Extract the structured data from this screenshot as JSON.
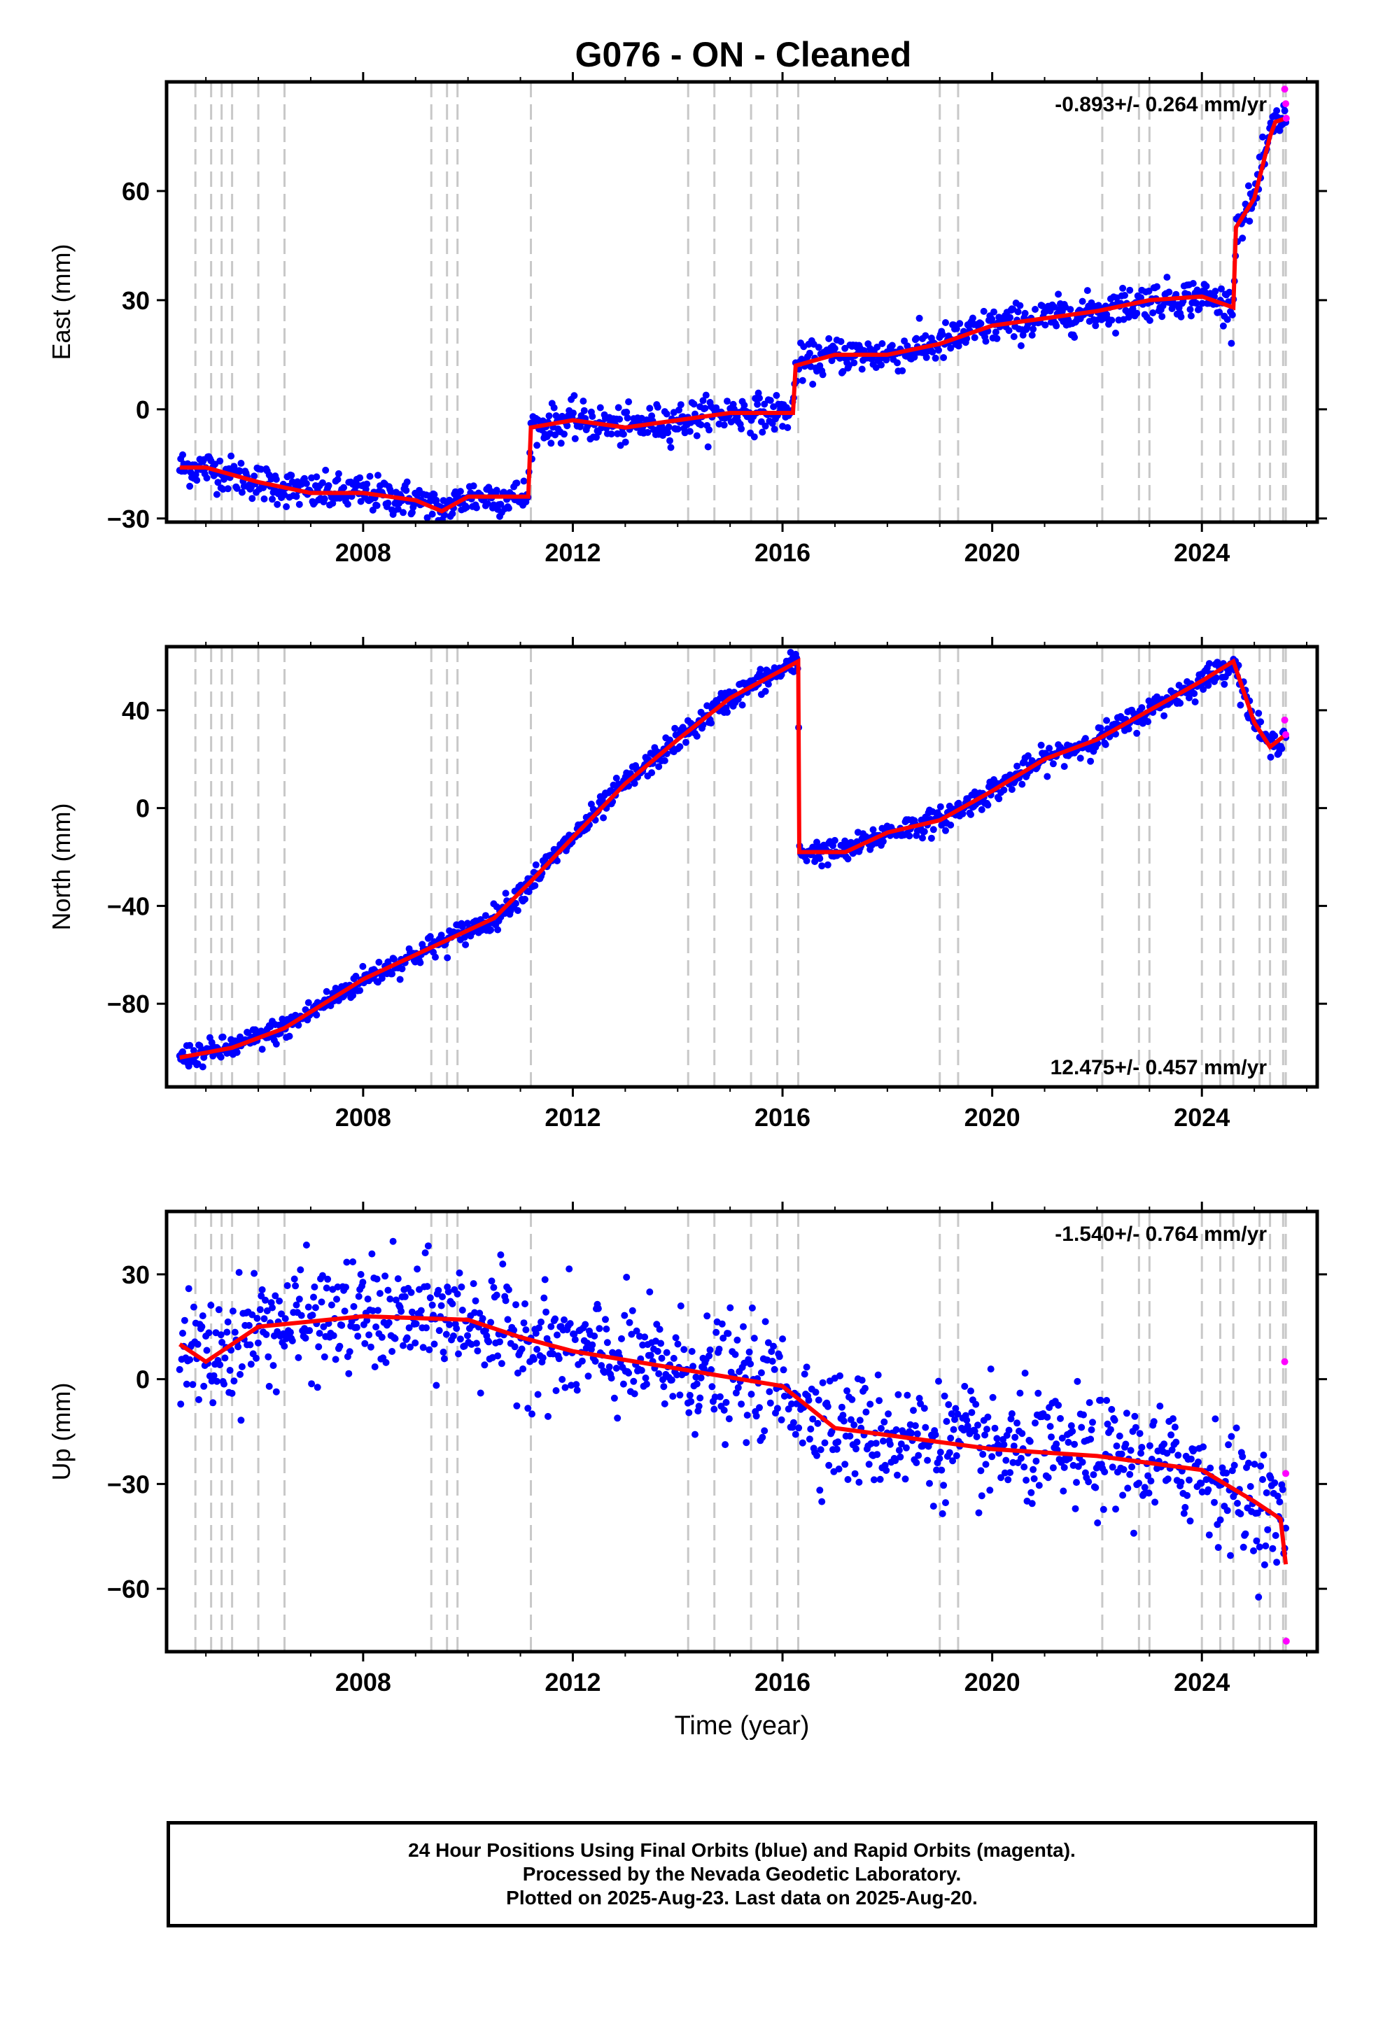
{
  "title": "G076  - ON - Cleaned",
  "colors": {
    "final_orbits": "#0000ff",
    "rapid_orbits": "#ff00ff",
    "model": "#ff0000",
    "event_lines": "#c8c8c8"
  },
  "event_years": [
    2004.8,
    2005.1,
    2005.3,
    2005.5,
    2006.0,
    2006.5,
    2009.3,
    2009.6,
    2009.8,
    2011.2,
    2014.2,
    2014.7,
    2015.4,
    2015.9,
    2016.3,
    2019.0,
    2019.35,
    2022.1,
    2022.8,
    2023.0,
    2024.0,
    2024.35,
    2024.6,
    2025.1,
    2025.3,
    2025.55,
    2025.6
  ],
  "chart_data": [
    {
      "type": "scatter",
      "id": "east",
      "ylabel": "East (mm)",
      "xlabel": "",
      "xlim": [
        2004.25,
        2026.2
      ],
      "ylim": [
        -31,
        90
      ],
      "xticks": [
        2008,
        2012,
        2016,
        2020,
        2024
      ],
      "xtick_labels": [
        "2008",
        "2012",
        "2016",
        "2020",
        "2024"
      ],
      "yticks": [
        -30,
        0,
        30,
        60
      ],
      "ytick_labels": [
        "−30",
        "0",
        "30",
        "60"
      ],
      "annotation": "-0.893+/- 0.264 mm/yr",
      "annotation_position": "top-right",
      "model_series": {
        "name": "",
        "x": [
          2004.5,
          2005.0,
          2006.0,
          2007.0,
          2008.0,
          2009.0,
          2009.5,
          2010.0,
          2011.15,
          2011.2,
          2012.0,
          2013.0,
          2014.0,
          2015.0,
          2016.2,
          2016.25,
          2017.0,
          2018.0,
          2019.0,
          2020.0,
          2021.0,
          2022.0,
          2023.0,
          2024.0,
          2024.6,
          2024.65,
          2025.0,
          2025.3,
          2025.4,
          2025.6
        ],
        "y": [
          -16,
          -16,
          -20,
          -23,
          -23,
          -25,
          -28,
          -24,
          -24,
          -5,
          -3,
          -5,
          -3,
          -1,
          -1,
          12,
          15,
          15,
          18,
          23,
          25,
          27,
          30,
          31,
          28,
          50,
          58,
          75,
          79,
          80
        ]
      },
      "rapid_points": {
        "x": [
          2025.58,
          2025.6,
          2025.61
        ],
        "y": [
          88,
          84,
          80
        ]
      },
      "scatter_spread": 2.5
    },
    {
      "type": "scatter",
      "id": "north",
      "ylabel": "North (mm)",
      "xlabel": "",
      "xlim": [
        2004.25,
        2026.2
      ],
      "ylim": [
        -114,
        66
      ],
      "xticks": [
        2008,
        2012,
        2016,
        2020,
        2024
      ],
      "xtick_labels": [
        "2008",
        "2012",
        "2016",
        "2020",
        "2024"
      ],
      "yticks": [
        -80,
        -40,
        0,
        40
      ],
      "ytick_labels": [
        "−80",
        "−40",
        "0",
        "40"
      ],
      "annotation": "12.475+/- 0.457 mm/yr",
      "annotation_position": "bottom-right",
      "model_series": {
        "name": "",
        "x": [
          2004.5,
          2005.5,
          2006.5,
          2008.0,
          2009.5,
          2010.5,
          2011.2,
          2012.0,
          2013.0,
          2014.0,
          2015.0,
          2016.3,
          2016.32,
          2017.2,
          2018.0,
          2019.0,
          2020.0,
          2021.0,
          2022.0,
          2023.0,
          2024.0,
          2024.6,
          2025.0,
          2025.3,
          2025.6
        ],
        "y": [
          -102,
          -98,
          -90,
          -70,
          -55,
          -45,
          -30,
          -12,
          10,
          28,
          45,
          60,
          -18,
          -18,
          -10,
          -5,
          7,
          20,
          28,
          40,
          52,
          60,
          35,
          25,
          30
        ]
      },
      "rapid_points": {
        "x": [
          2025.58,
          2025.6
        ],
        "y": [
          36,
          30
        ]
      },
      "scatter_spread": 2.5
    },
    {
      "type": "scatter",
      "id": "up",
      "ylabel": "Up (mm)",
      "xlabel": "Time (year)",
      "xlim": [
        2004.25,
        2026.2
      ],
      "ylim": [
        -78,
        48
      ],
      "xticks": [
        2008,
        2012,
        2016,
        2020,
        2024
      ],
      "xtick_labels": [
        "2008",
        "2012",
        "2016",
        "2020",
        "2024"
      ],
      "yticks": [
        -60,
        -30,
        0,
        30
      ],
      "ytick_labels": [
        "−60",
        "−30",
        "0",
        "30"
      ],
      "annotation": "-1.540+/- 0.764 mm/yr",
      "annotation_position": "top-right",
      "model_series": {
        "name": "",
        "x": [
          2004.5,
          2005.0,
          2006.0,
          2008.0,
          2010.0,
          2011.0,
          2012.0,
          2014.0,
          2016.0,
          2017.0,
          2018.0,
          2020.0,
          2022.0,
          2024.0,
          2025.0,
          2025.5,
          2025.6
        ],
        "y": [
          10,
          5,
          15,
          18,
          17,
          12,
          8,
          3,
          -2,
          -14,
          -16,
          -20,
          -22,
          -26,
          -35,
          -40,
          -53
        ]
      },
      "rapid_points": {
        "x": [
          2025.58,
          2025.6,
          2025.61
        ],
        "y": [
          5,
          -27,
          -75
        ]
      },
      "scatter_spread": 8
    }
  ],
  "footer": {
    "line1": "24 Hour Positions Using Final Orbits (blue) and Rapid Orbits (magenta).",
    "line2": "Processed by the Nevada Geodetic Laboratory.",
    "line3": "Plotted on 2025-Aug-23. Last data on 2025-Aug-20."
  }
}
